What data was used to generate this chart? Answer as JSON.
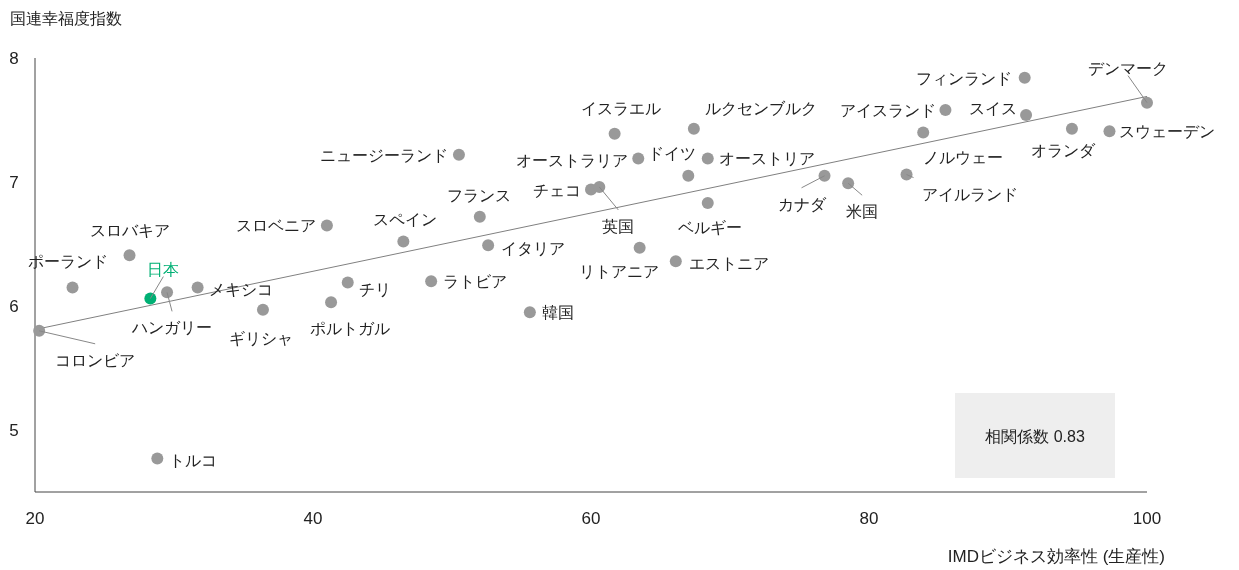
{
  "chart_data": {
    "type": "scatter",
    "ylabel": "国連幸福度指数",
    "xlabel": "IMDビジネス効率性 (生産性)",
    "xlim": [
      20,
      100
    ],
    "xticks": [
      20,
      40,
      60,
      80,
      100
    ],
    "ylim": [
      4.5,
      8
    ],
    "yticks": [
      5,
      6,
      7,
      8
    ],
    "series": [
      {
        "type": "scatter",
        "marker": "circle",
        "color": "#999999",
        "x": [
          100,
          91.2,
          85.5,
          91.3,
          83.9,
          94.6,
          97.3,
          67.4,
          61.7,
          67.0,
          68.4,
          63.4,
          50.5,
          60.0,
          60.6,
          68.4,
          76.8,
          78.5,
          82.7,
          52.0,
          46.5,
          52.6,
          41.0,
          63.5,
          66.1,
          26.8,
          22.7,
          28.3,
          29.5,
          31.7,
          42.5,
          48.5,
          36.4,
          41.3,
          55.6,
          20.3,
          28.8
        ],
        "values": [
          7.64,
          7.84,
          7.58,
          7.54,
          7.4,
          7.43,
          7.41,
          7.43,
          7.39,
          7.05,
          7.19,
          7.19,
          7.22,
          6.94,
          6.96,
          6.83,
          7.05,
          6.99,
          7.06,
          6.72,
          6.52,
          6.49,
          6.65,
          6.47,
          6.36,
          6.41,
          6.15,
          6.06,
          6.11,
          6.15,
          6.19,
          6.2,
          5.97,
          6.03,
          5.95,
          5.8,
          4.77
        ],
        "colors": [
          "#999999",
          "#999999",
          "#999999",
          "#999999",
          "#999999",
          "#999999",
          "#999999",
          "#999999",
          "#999999",
          "#999999",
          "#999999",
          "#999999",
          "#999999",
          "#999999",
          "#999999",
          "#999999",
          "#999999",
          "#999999",
          "#999999",
          "#999999",
          "#999999",
          "#999999",
          "#999999",
          "#999999",
          "#999999",
          "#999999",
          "#999999",
          "#00b074",
          "#999999",
          "#999999",
          "#999999",
          "#999999",
          "#999999",
          "#999999",
          "#999999",
          "#999999",
          "#999999"
        ]
      },
      {
        "type": "line",
        "color": "#808080",
        "x": [
          20,
          100
        ],
        "values": [
          5.81,
          7.69
        ]
      }
    ],
    "annotations": [
      {
        "text": "デンマーク",
        "x": 100,
        "y": 7.64
      },
      {
        "text": "フィンランド",
        "x": 91.2,
        "y": 7.84
      },
      {
        "text": "アイスランド",
        "x": 85.5,
        "y": 7.58
      },
      {
        "text": "スイス",
        "x": 91.3,
        "y": 7.54
      },
      {
        "text": "ノルウェー",
        "x": 83.9,
        "y": 7.4
      },
      {
        "text": "オランダ",
        "x": 94.6,
        "y": 7.43
      },
      {
        "text": "スウェーデン",
        "x": 97.3,
        "y": 7.41
      },
      {
        "text": "ルクセンブルク",
        "x": 67.4,
        "y": 7.43
      },
      {
        "text": "イスラエル",
        "x": 61.7,
        "y": 7.39
      },
      {
        "text": "ドイツ",
        "x": 67.0,
        "y": 7.05
      },
      {
        "text": "オーストリア",
        "x": 68.4,
        "y": 7.19
      },
      {
        "text": "オーストラリア",
        "x": 63.4,
        "y": 7.19
      },
      {
        "text": "ニュージーランド",
        "x": 50.5,
        "y": 7.22
      },
      {
        "text": "チェコ",
        "x": 60.0,
        "y": 6.94
      },
      {
        "text": "英国",
        "x": 60.6,
        "y": 6.96
      },
      {
        "text": "ベルギー",
        "x": 68.4,
        "y": 6.83
      },
      {
        "text": "カナダ",
        "x": 76.8,
        "y": 7.05
      },
      {
        "text": "米国",
        "x": 78.5,
        "y": 6.99
      },
      {
        "text": "アイルランド",
        "x": 82.7,
        "y": 7.06
      },
      {
        "text": "フランス",
        "x": 52.0,
        "y": 6.72
      },
      {
        "text": "スペイン",
        "x": 46.5,
        "y": 6.52
      },
      {
        "text": "イタリア",
        "x": 52.6,
        "y": 6.49
      },
      {
        "text": "スロベニア",
        "x": 41.0,
        "y": 6.65
      },
      {
        "text": "リトアニア",
        "x": 63.5,
        "y": 6.47
      },
      {
        "text": "エストニア",
        "x": 66.1,
        "y": 6.36
      },
      {
        "text": "スロバキア",
        "x": 26.8,
        "y": 6.41
      },
      {
        "text": "ポーランド",
        "x": 22.7,
        "y": 6.15
      },
      {
        "text": "日本",
        "x": 28.3,
        "y": 6.06
      },
      {
        "text": "ハンガリー",
        "x": 29.5,
        "y": 6.11
      },
      {
        "text": "メキシコ",
        "x": 31.7,
        "y": 6.15
      },
      {
        "text": "チリ",
        "x": 42.5,
        "y": 6.19
      },
      {
        "text": "ラトビア",
        "x": 48.5,
        "y": 6.2
      },
      {
        "text": "ギリシャ",
        "x": 36.4,
        "y": 5.97
      },
      {
        "text": "ポルトガル",
        "x": 41.3,
        "y": 6.03
      },
      {
        "text": "韓国",
        "x": 55.6,
        "y": 5.95
      },
      {
        "text": "コロンビア",
        "x": 20.3,
        "y": 5.8
      },
      {
        "text": "トルコ",
        "x": 28.8,
        "y": 4.77
      },
      "相関係数 0.83"
    ]
  }
}
